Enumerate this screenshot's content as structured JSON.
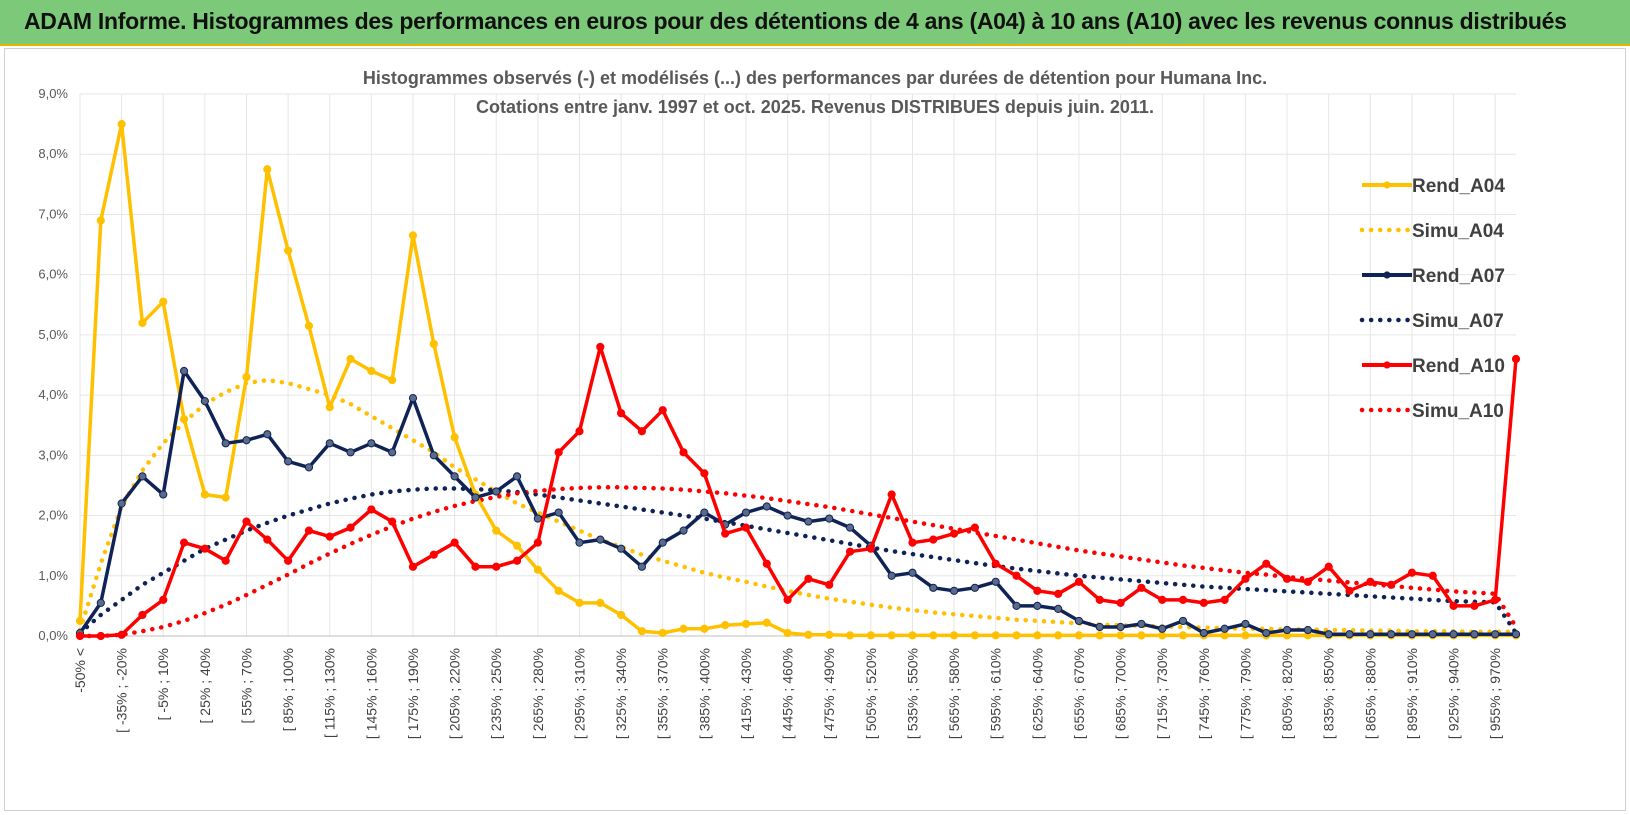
{
  "header": {
    "title": "ADAM Informe. Histogrammes des performances en euros pour des détentions de 4 ans (A04) à 10 ans (A10) avec les revenus connus distribués"
  },
  "chart_data": {
    "type": "line",
    "title": "Histogrammes observés (-) et modélisés (...) des performances par durées de détention pour Humana Inc.",
    "subtitle": "Cotations entre janv. 1997 et oct. 2025.  Revenus DISTRIBUES depuis juin. 2011.",
    "y_ticks": [
      "0,0%",
      "1,0%",
      "2,0%",
      "3,0%",
      "4,0%",
      "5,0%",
      "6,0%",
      "7,0%",
      "8,0%",
      "9,0%"
    ],
    "ylim": [
      0,
      9
    ],
    "x_labels": [
      "-50% <",
      "[ -35% ; -20%",
      "[ -5% ; 10%",
      "[ 25% ; 40%",
      "[ 55% ; 70%",
      "[ 85% ; 100%",
      "[ 115% ; 130%",
      "[ 145% ; 160%",
      "[ 175% ; 190%",
      "[ 205% ; 220%",
      "[ 235% ; 250%",
      "[ 265% ; 280%",
      "[ 295% ; 310%",
      "[ 325% ; 340%",
      "[ 355% ; 370%",
      "[ 385% ; 400%",
      "[ 415% ; 430%",
      "[ 445% ; 460%",
      "[ 475% ; 490%",
      "[ 505% ; 520%",
      "[ 535% ; 550%",
      "[ 565% ; 580%",
      "[ 595% ; 610%",
      "[ 625% ; 640%",
      "[ 655% ; 670%",
      "[ 685% ; 700%",
      "[ 715% ; 730%",
      "[ 745% ; 760%",
      "[ 775% ; 790%",
      "[ 805% ; 820%",
      "[ 835% ; 850%",
      "[ 865% ; 880%",
      "[ 895% ; 910%",
      "[ 925% ; 940%",
      "[ 955% ; 970%"
    ],
    "n_points": 70,
    "series": [
      {
        "name": "Rend_A04",
        "color": "#ffc000",
        "style": "solid",
        "markers": true,
        "values": [
          0.25,
          6.9,
          8.5,
          5.2,
          5.55,
          3.6,
          2.35,
          2.3,
          4.3,
          7.75,
          6.4,
          5.15,
          3.8,
          4.6,
          4.4,
          4.25,
          6.65,
          4.85,
          3.3,
          2.35,
          1.75,
          1.5,
          1.1,
          0.75,
          0.55,
          0.55,
          0.35,
          0.08,
          0.05,
          0.12,
          0.12,
          0.18,
          0.2,
          0.22,
          0.05,
          0.02,
          0.02,
          0.01,
          0.01,
          0.01,
          0.01,
          0.01,
          0.01,
          0.01,
          0.01,
          0.01,
          0.01,
          0.01,
          0.01,
          0.01,
          0.01,
          0.01,
          0.01,
          0.01,
          0.01,
          0.01,
          0.01,
          0.01,
          0.01,
          0.01,
          0.01,
          0.01,
          0.01,
          0.01,
          0.01,
          0.01,
          0.01,
          0.01,
          0.01,
          0.01
        ]
      },
      {
        "name": "Simu_A04",
        "color": "#ffc000",
        "style": "dotted",
        "markers": false,
        "values": [
          0.1,
          1.2,
          2.15,
          2.75,
          3.2,
          3.55,
          3.85,
          4.05,
          4.2,
          4.25,
          4.2,
          4.1,
          4.0,
          3.85,
          3.65,
          3.45,
          3.25,
          3.05,
          2.8,
          2.6,
          2.4,
          2.2,
          2.05,
          1.9,
          1.75,
          1.6,
          1.48,
          1.35,
          1.25,
          1.15,
          1.05,
          0.97,
          0.9,
          0.82,
          0.75,
          0.68,
          0.62,
          0.57,
          0.52,
          0.47,
          0.43,
          0.39,
          0.36,
          0.33,
          0.3,
          0.27,
          0.25,
          0.23,
          0.21,
          0.19,
          0.18,
          0.17,
          0.16,
          0.15,
          0.14,
          0.13,
          0.12,
          0.12,
          0.11,
          0.11,
          0.1,
          0.1,
          0.09,
          0.09,
          0.08,
          0.08,
          0.08,
          0.07,
          0.07,
          0.07
        ]
      },
      {
        "name": "Rend_A07",
        "color": "#0f2356",
        "style": "solid",
        "markers": true,
        "values": [
          0.05,
          0.55,
          2.2,
          2.65,
          2.35,
          4.4,
          3.9,
          3.2,
          3.25,
          3.35,
          2.9,
          2.8,
          3.2,
          3.05,
          3.2,
          3.05,
          3.95,
          3.0,
          2.65,
          2.3,
          2.4,
          2.65,
          1.95,
          2.05,
          1.55,
          1.6,
          1.45,
          1.15,
          1.55,
          1.75,
          2.05,
          1.85,
          2.05,
          2.15,
          2.0,
          1.9,
          1.95,
          1.8,
          1.5,
          1.0,
          1.05,
          0.8,
          0.75,
          0.8,
          0.9,
          0.5,
          0.5,
          0.45,
          0.25,
          0.15,
          0.15,
          0.2,
          0.12,
          0.25,
          0.05,
          0.12,
          0.2,
          0.05,
          0.1,
          0.1,
          0.03,
          0.03,
          0.03,
          0.03,
          0.03,
          0.03,
          0.03,
          0.03,
          0.03,
          0.03
        ]
      },
      {
        "name": "Simu_A07",
        "color": "#0f2356",
        "style": "dotted",
        "markers": false,
        "values": [
          0.05,
          0.35,
          0.6,
          0.85,
          1.05,
          1.25,
          1.45,
          1.6,
          1.75,
          1.88,
          2.0,
          2.1,
          2.2,
          2.28,
          2.35,
          2.4,
          2.43,
          2.45,
          2.45,
          2.44,
          2.42,
          2.39,
          2.35,
          2.3,
          2.25,
          2.2,
          2.15,
          2.1,
          2.05,
          2.0,
          1.95,
          1.89,
          1.83,
          1.77,
          1.71,
          1.65,
          1.59,
          1.53,
          1.47,
          1.41,
          1.36,
          1.31,
          1.26,
          1.21,
          1.16,
          1.12,
          1.08,
          1.04,
          1.0,
          0.97,
          0.94,
          0.91,
          0.88,
          0.85,
          0.82,
          0.8,
          0.78,
          0.76,
          0.74,
          0.72,
          0.7,
          0.68,
          0.66,
          0.64,
          0.62,
          0.6,
          0.58,
          0.57,
          0.56,
          0.05
        ]
      },
      {
        "name": "Rend_A10",
        "color": "#ff0000",
        "style": "solid",
        "markers": true,
        "values": [
          0.0,
          0.0,
          0.02,
          0.35,
          0.6,
          1.55,
          1.45,
          1.25,
          1.9,
          1.6,
          1.25,
          1.75,
          1.65,
          1.8,
          2.1,
          1.9,
          1.15,
          1.35,
          1.55,
          1.15,
          1.15,
          1.25,
          1.55,
          3.05,
          3.4,
          4.8,
          3.7,
          3.4,
          3.75,
          3.05,
          2.7,
          1.7,
          1.8,
          1.2,
          0.6,
          0.95,
          0.85,
          1.4,
          1.45,
          2.35,
          1.55,
          1.6,
          1.7,
          1.8,
          1.2,
          1.0,
          0.75,
          0.7,
          0.9,
          0.6,
          0.55,
          0.8,
          0.6,
          0.6,
          0.55,
          0.6,
          0.95,
          1.2,
          0.95,
          0.9,
          1.15,
          0.75,
          0.9,
          0.85,
          1.05,
          1.0,
          0.5,
          0.5,
          0.6,
          4.6
        ]
      },
      {
        "name": "Simu_A10",
        "color": "#ff0000",
        "style": "dotted",
        "markers": false,
        "values": [
          0.0,
          0.0,
          0.02,
          0.08,
          0.15,
          0.25,
          0.38,
          0.52,
          0.68,
          0.85,
          1.02,
          1.2,
          1.37,
          1.53,
          1.68,
          1.82,
          1.95,
          2.06,
          2.16,
          2.24,
          2.31,
          2.37,
          2.41,
          2.44,
          2.46,
          2.47,
          2.47,
          2.46,
          2.45,
          2.43,
          2.4,
          2.37,
          2.33,
          2.29,
          2.24,
          2.19,
          2.14,
          2.08,
          2.02,
          1.96,
          1.9,
          1.84,
          1.78,
          1.72,
          1.66,
          1.6,
          1.54,
          1.48,
          1.42,
          1.37,
          1.32,
          1.27,
          1.22,
          1.17,
          1.13,
          1.09,
          1.05,
          1.02,
          0.98,
          0.95,
          0.92,
          0.89,
          0.86,
          0.83,
          0.8,
          0.77,
          0.74,
          0.72,
          0.7,
          0.15
        ]
      }
    ],
    "legend_position": "right"
  }
}
